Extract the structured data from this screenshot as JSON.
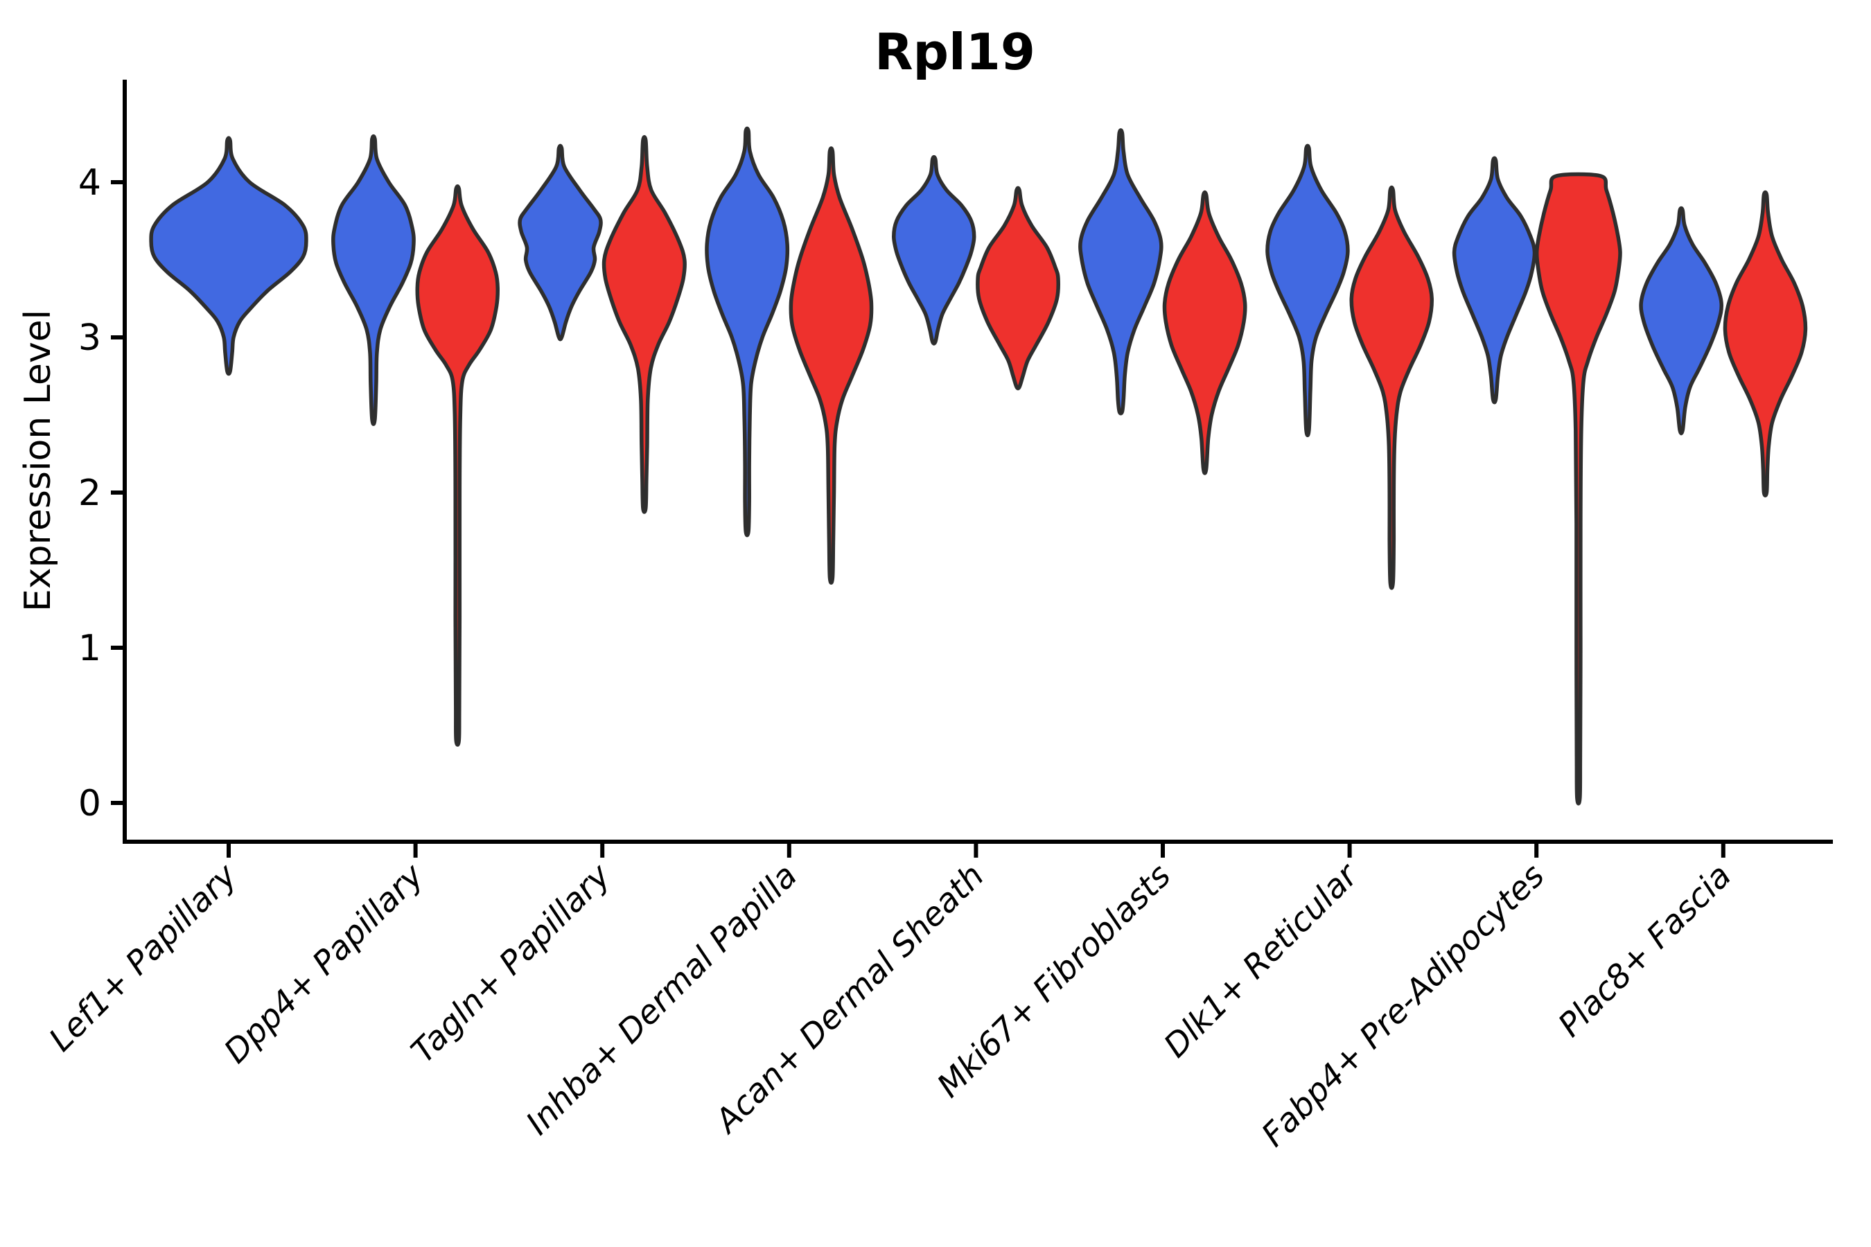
{
  "chart_data": {
    "type": "violin",
    "title": "Rpl19",
    "xlabel": "",
    "ylabel": "Expression Level",
    "ylim": [
      -0.25,
      4.65
    ],
    "y_ticks": [
      0,
      1,
      2,
      3,
      4
    ],
    "grid": false,
    "legend": "none",
    "background": "#ffffff",
    "categories": [
      "Lef1+ Papillary",
      "Dpp4+ Papillary",
      "Tagln+ Papillary",
      "Inhba+ Dermal Papilla",
      "Acan+ Dermal Sheath",
      "Mki67+ Fibroblasts",
      "Dlk1+ Reticular",
      "Fabp4+ Pre-Adipocytes",
      "Plac8+ Fascia"
    ],
    "groups": [
      "group-blue",
      "group-red"
    ],
    "colors": {
      "group-blue": "#4169E1",
      "group-red": "#EE312D",
      "outline": "#2E2E2E",
      "axis": "#000000"
    },
    "violins": [
      {
        "category_index": 0,
        "category": "Lef1+ Papillary",
        "group": "group-blue",
        "color_key": "group-blue",
        "offset": 0.0,
        "halfwidth": 0.415,
        "flat_top": false,
        "outline": [
          [
            4.27,
            0.018
          ],
          [
            4.15,
            0.054
          ],
          [
            4.0,
            0.27
          ],
          [
            3.85,
            0.73
          ],
          [
            3.72,
            0.96
          ],
          [
            3.62,
            1.0
          ],
          [
            3.52,
            0.96
          ],
          [
            3.42,
            0.79
          ],
          [
            3.3,
            0.5
          ],
          [
            3.18,
            0.27
          ],
          [
            3.1,
            0.14
          ],
          [
            3.0,
            0.063
          ],
          [
            2.9,
            0.045
          ],
          [
            2.78,
            0.018
          ]
        ]
      },
      {
        "category_index": 1,
        "category": "Dpp4+ Papillary",
        "group": "group-blue",
        "color_key": "group-blue",
        "offset": -0.225,
        "halfwidth": 0.215,
        "flat_top": false,
        "outline": [
          [
            4.28,
            0.034
          ],
          [
            4.15,
            0.086
          ],
          [
            4.0,
            0.38
          ],
          [
            3.85,
            0.79
          ],
          [
            3.7,
            0.97
          ],
          [
            3.6,
            1.0
          ],
          [
            3.48,
            0.93
          ],
          [
            3.35,
            0.72
          ],
          [
            3.2,
            0.41
          ],
          [
            3.05,
            0.17
          ],
          [
            2.9,
            0.086
          ],
          [
            2.7,
            0.069
          ],
          [
            2.47,
            0.034
          ]
        ]
      },
      {
        "category_index": 1,
        "category": "Dpp4+ Papillary",
        "group": "group-red",
        "color_key": "group-red",
        "offset": 0.225,
        "halfwidth": 0.215,
        "flat_top": false,
        "outline": [
          [
            3.96,
            0.034
          ],
          [
            3.85,
            0.1
          ],
          [
            3.7,
            0.38
          ],
          [
            3.55,
            0.76
          ],
          [
            3.42,
            0.95
          ],
          [
            3.32,
            1.0
          ],
          [
            3.2,
            0.97
          ],
          [
            3.05,
            0.83
          ],
          [
            2.92,
            0.55
          ],
          [
            2.82,
            0.28
          ],
          [
            2.72,
            0.12
          ],
          [
            2.5,
            0.069
          ],
          [
            2.0,
            0.052
          ],
          [
            1.2,
            0.052
          ],
          [
            0.6,
            0.043
          ],
          [
            0.4,
            0.034
          ]
        ]
      },
      {
        "category_index": 2,
        "category": "Tagln+ Papillary",
        "group": "group-blue",
        "color_key": "group-blue",
        "offset": -0.225,
        "halfwidth": 0.215,
        "flat_top": false,
        "outline": [
          [
            4.22,
            0.034
          ],
          [
            4.1,
            0.1
          ],
          [
            3.95,
            0.48
          ],
          [
            3.83,
            0.83
          ],
          [
            3.76,
            1.0
          ],
          [
            3.68,
            0.97
          ],
          [
            3.58,
            0.83
          ],
          [
            3.5,
            0.86
          ],
          [
            3.42,
            0.76
          ],
          [
            3.3,
            0.48
          ],
          [
            3.2,
            0.28
          ],
          [
            3.1,
            0.14
          ],
          [
            3.0,
            0.034
          ]
        ]
      },
      {
        "category_index": 2,
        "category": "Tagln+ Papillary",
        "group": "group-red",
        "color_key": "group-red",
        "offset": 0.225,
        "halfwidth": 0.215,
        "flat_top": false,
        "outline": [
          [
            4.27,
            0.034
          ],
          [
            4.1,
            0.069
          ],
          [
            3.95,
            0.17
          ],
          [
            3.8,
            0.52
          ],
          [
            3.62,
            0.86
          ],
          [
            3.5,
            1.0
          ],
          [
            3.38,
            0.97
          ],
          [
            3.25,
            0.83
          ],
          [
            3.1,
            0.62
          ],
          [
            2.95,
            0.34
          ],
          [
            2.8,
            0.16
          ],
          [
            2.6,
            0.086
          ],
          [
            2.3,
            0.069
          ],
          [
            2.1,
            0.052
          ],
          [
            1.9,
            0.034
          ]
        ]
      },
      {
        "category_index": 3,
        "category": "Inhba+ Dermal Papilla",
        "group": "group-blue",
        "color_key": "group-blue",
        "offset": -0.225,
        "halfwidth": 0.215,
        "flat_top": false,
        "outline": [
          [
            4.33,
            0.034
          ],
          [
            4.2,
            0.069
          ],
          [
            4.05,
            0.28
          ],
          [
            3.9,
            0.66
          ],
          [
            3.75,
            0.9
          ],
          [
            3.6,
            1.0
          ],
          [
            3.45,
            0.97
          ],
          [
            3.3,
            0.83
          ],
          [
            3.15,
            0.62
          ],
          [
            3.0,
            0.38
          ],
          [
            2.85,
            0.21
          ],
          [
            2.7,
            0.1
          ],
          [
            2.5,
            0.069
          ],
          [
            2.2,
            0.052
          ],
          [
            1.95,
            0.052
          ],
          [
            1.75,
            0.034
          ]
        ]
      },
      {
        "category_index": 3,
        "category": "Inhba+ Dermal Papilla",
        "group": "group-red",
        "color_key": "group-red",
        "offset": 0.225,
        "halfwidth": 0.215,
        "flat_top": false,
        "outline": [
          [
            4.2,
            0.034
          ],
          [
            4.05,
            0.069
          ],
          [
            3.9,
            0.21
          ],
          [
            3.7,
            0.52
          ],
          [
            3.5,
            0.79
          ],
          [
            3.35,
            0.93
          ],
          [
            3.22,
            1.0
          ],
          [
            3.08,
            0.97
          ],
          [
            2.92,
            0.79
          ],
          [
            2.75,
            0.52
          ],
          [
            2.6,
            0.28
          ],
          [
            2.45,
            0.14
          ],
          [
            2.3,
            0.086
          ],
          [
            2.0,
            0.069
          ],
          [
            1.7,
            0.052
          ],
          [
            1.45,
            0.034
          ]
        ]
      },
      {
        "category_index": 4,
        "category": "Acan+ Dermal Sheath",
        "group": "group-blue",
        "color_key": "group-blue",
        "offset": -0.225,
        "halfwidth": 0.215,
        "flat_top": false,
        "outline": [
          [
            4.15,
            0.034
          ],
          [
            4.05,
            0.086
          ],
          [
            3.95,
            0.31
          ],
          [
            3.85,
            0.69
          ],
          [
            3.75,
            0.93
          ],
          [
            3.65,
            1.0
          ],
          [
            3.55,
            0.93
          ],
          [
            3.45,
            0.79
          ],
          [
            3.35,
            0.62
          ],
          [
            3.25,
            0.41
          ],
          [
            3.15,
            0.21
          ],
          [
            3.05,
            0.1
          ],
          [
            2.97,
            0.034
          ]
        ]
      },
      {
        "category_index": 4,
        "category": "Acan+ Dermal Sheath",
        "group": "group-red",
        "color_key": "group-red",
        "offset": 0.225,
        "halfwidth": 0.215,
        "flat_top": false,
        "outline": [
          [
            3.95,
            0.034
          ],
          [
            3.85,
            0.1
          ],
          [
            3.72,
            0.34
          ],
          [
            3.58,
            0.72
          ],
          [
            3.45,
            0.93
          ],
          [
            3.38,
            1.0
          ],
          [
            3.25,
            0.97
          ],
          [
            3.1,
            0.76
          ],
          [
            2.95,
            0.45
          ],
          [
            2.85,
            0.24
          ],
          [
            2.75,
            0.12
          ],
          [
            2.68,
            0.034
          ]
        ]
      },
      {
        "category_index": 5,
        "category": "Mki67+ Fibroblasts",
        "group": "group-blue",
        "color_key": "group-blue",
        "offset": -0.225,
        "halfwidth": 0.215,
        "flat_top": false,
        "outline": [
          [
            4.32,
            0.034
          ],
          [
            4.2,
            0.069
          ],
          [
            4.05,
            0.17
          ],
          [
            3.9,
            0.48
          ],
          [
            3.75,
            0.83
          ],
          [
            3.62,
            1.0
          ],
          [
            3.5,
            0.97
          ],
          [
            3.35,
            0.83
          ],
          [
            3.2,
            0.59
          ],
          [
            3.05,
            0.34
          ],
          [
            2.9,
            0.17
          ],
          [
            2.75,
            0.1
          ],
          [
            2.6,
            0.069
          ],
          [
            2.52,
            0.034
          ]
        ]
      },
      {
        "category_index": 5,
        "category": "Mki67+ Fibroblasts",
        "group": "group-red",
        "color_key": "group-red",
        "offset": 0.225,
        "halfwidth": 0.215,
        "flat_top": false,
        "outline": [
          [
            3.92,
            0.034
          ],
          [
            3.8,
            0.1
          ],
          [
            3.65,
            0.34
          ],
          [
            3.5,
            0.66
          ],
          [
            3.35,
            0.9
          ],
          [
            3.22,
            1.0
          ],
          [
            3.1,
            0.97
          ],
          [
            2.95,
            0.83
          ],
          [
            2.8,
            0.59
          ],
          [
            2.65,
            0.34
          ],
          [
            2.5,
            0.17
          ],
          [
            2.35,
            0.086
          ],
          [
            2.15,
            0.034
          ]
        ]
      },
      {
        "category_index": 6,
        "category": "Dlk1+ Reticular",
        "group": "group-blue",
        "color_key": "group-blue",
        "offset": -0.225,
        "halfwidth": 0.215,
        "flat_top": false,
        "outline": [
          [
            4.22,
            0.034
          ],
          [
            4.1,
            0.086
          ],
          [
            3.95,
            0.34
          ],
          [
            3.8,
            0.72
          ],
          [
            3.68,
            0.93
          ],
          [
            3.55,
            1.0
          ],
          [
            3.42,
            0.9
          ],
          [
            3.3,
            0.72
          ],
          [
            3.15,
            0.45
          ],
          [
            3.0,
            0.21
          ],
          [
            2.85,
            0.1
          ],
          [
            2.65,
            0.069
          ],
          [
            2.4,
            0.034
          ]
        ]
      },
      {
        "category_index": 6,
        "category": "Dlk1+ Reticular",
        "group": "group-red",
        "color_key": "group-red",
        "offset": 0.225,
        "halfwidth": 0.215,
        "flat_top": false,
        "outline": [
          [
            3.95,
            0.034
          ],
          [
            3.82,
            0.086
          ],
          [
            3.68,
            0.31
          ],
          [
            3.52,
            0.66
          ],
          [
            3.38,
            0.9
          ],
          [
            3.25,
            1.0
          ],
          [
            3.1,
            0.93
          ],
          [
            2.95,
            0.72
          ],
          [
            2.8,
            0.45
          ],
          [
            2.65,
            0.22
          ],
          [
            2.5,
            0.12
          ],
          [
            2.3,
            0.069
          ],
          [
            2.0,
            0.052
          ],
          [
            1.7,
            0.052
          ],
          [
            1.42,
            0.034
          ]
        ]
      },
      {
        "category_index": 7,
        "category": "Fabp4+ Pre-Adipocytes",
        "group": "group-blue",
        "color_key": "group-blue",
        "offset": -0.225,
        "halfwidth": 0.215,
        "flat_top": false,
        "outline": [
          [
            4.14,
            0.034
          ],
          [
            4.02,
            0.086
          ],
          [
            3.9,
            0.31
          ],
          [
            3.78,
            0.66
          ],
          [
            3.65,
            0.9
          ],
          [
            3.55,
            1.0
          ],
          [
            3.42,
            0.93
          ],
          [
            3.3,
            0.79
          ],
          [
            3.15,
            0.55
          ],
          [
            3.0,
            0.31
          ],
          [
            2.88,
            0.16
          ],
          [
            2.75,
            0.086
          ],
          [
            2.6,
            0.034
          ]
        ]
      },
      {
        "category_index": 7,
        "category": "Fabp4+ Pre-Adipocytes",
        "group": "group-red",
        "color_key": "group-red",
        "offset": 0.225,
        "halfwidth": 0.223,
        "flat_top": true,
        "outline": [
          [
            4.04,
            0.53
          ],
          [
            3.95,
            0.67
          ],
          [
            3.8,
            0.83
          ],
          [
            3.65,
            0.95
          ],
          [
            3.55,
            1.0
          ],
          [
            3.45,
            0.97
          ],
          [
            3.3,
            0.87
          ],
          [
            3.15,
            0.67
          ],
          [
            3.0,
            0.43
          ],
          [
            2.85,
            0.23
          ],
          [
            2.72,
            0.12
          ],
          [
            2.4,
            0.067
          ],
          [
            1.8,
            0.05
          ],
          [
            1.0,
            0.05
          ],
          [
            0.3,
            0.042
          ],
          [
            0.03,
            0.033
          ]
        ]
      },
      {
        "category_index": 8,
        "category": "Plac8+ Fascia",
        "group": "group-blue",
        "color_key": "group-blue",
        "offset": -0.225,
        "halfwidth": 0.215,
        "flat_top": false,
        "outline": [
          [
            3.82,
            0.034
          ],
          [
            3.72,
            0.086
          ],
          [
            3.6,
            0.28
          ],
          [
            3.48,
            0.59
          ],
          [
            3.35,
            0.86
          ],
          [
            3.22,
            1.0
          ],
          [
            3.1,
            0.93
          ],
          [
            2.95,
            0.72
          ],
          [
            2.8,
            0.45
          ],
          [
            2.68,
            0.22
          ],
          [
            2.55,
            0.1
          ],
          [
            2.4,
            0.034
          ]
        ]
      },
      {
        "category_index": 8,
        "category": "Plac8+ Fascia",
        "group": "group-red",
        "color_key": "group-red",
        "offset": 0.225,
        "halfwidth": 0.215,
        "flat_top": false,
        "outline": [
          [
            3.92,
            0.034
          ],
          [
            3.8,
            0.069
          ],
          [
            3.65,
            0.17
          ],
          [
            3.5,
            0.41
          ],
          [
            3.35,
            0.72
          ],
          [
            3.2,
            0.93
          ],
          [
            3.05,
            1.0
          ],
          [
            2.9,
            0.9
          ],
          [
            2.75,
            0.66
          ],
          [
            2.6,
            0.38
          ],
          [
            2.45,
            0.17
          ],
          [
            2.3,
            0.086
          ],
          [
            2.15,
            0.052
          ],
          [
            2.0,
            0.034
          ]
        ]
      }
    ]
  }
}
